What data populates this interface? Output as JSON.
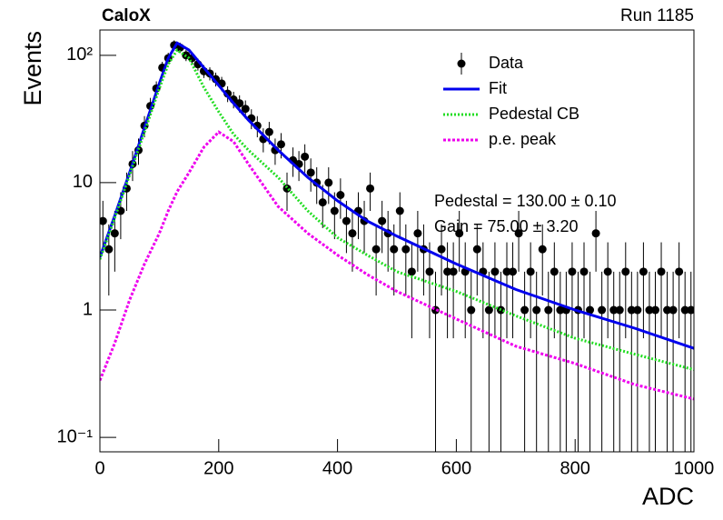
{
  "chart_data": {
    "type": "scatter",
    "title": "CaloX",
    "subtitle": "Run 1185",
    "x_label": "ADC",
    "y_label": "Events",
    "log_y": true,
    "xlim": [
      0,
      1000
    ],
    "ylim": [
      0.077,
      158
    ],
    "xticks": [
      0,
      200,
      400,
      600,
      800,
      1000
    ],
    "yticks": [
      {
        "value": 0.1,
        "label": "10⁻¹"
      },
      1,
      10,
      {
        "value": 100,
        "label": "10²"
      }
    ],
    "legend": "top-right",
    "data_series": {
      "name": "Data",
      "color": "#000000",
      "x": [
        5,
        15,
        25,
        35,
        45,
        55,
        65,
        75,
        85,
        95,
        105,
        115,
        125,
        135,
        145,
        155,
        165,
        175,
        185,
        195,
        205,
        215,
        225,
        235,
        245,
        255,
        265,
        275,
        285,
        295,
        305,
        315,
        325,
        335,
        345,
        355,
        365,
        375,
        385,
        395,
        405,
        415,
        425,
        435,
        445,
        455,
        465,
        475,
        485,
        495,
        505,
        515,
        525,
        535,
        545,
        555,
        565,
        575,
        585,
        595,
        605,
        615,
        625,
        635,
        645,
        655,
        665,
        675,
        685,
        695,
        705,
        715,
        725,
        735,
        745,
        755,
        765,
        775,
        785,
        795,
        805,
        815,
        825,
        835,
        845,
        855,
        865,
        875,
        885,
        895,
        905,
        915,
        925,
        935,
        945,
        955,
        965,
        975,
        985,
        995
      ],
      "values": [
        5,
        3,
        4,
        6,
        9,
        14,
        18,
        28,
        40,
        55,
        80,
        95,
        120,
        115,
        100,
        95,
        85,
        75,
        72,
        65,
        60,
        50,
        45,
        42,
        38,
        32,
        28,
        22,
        25,
        18,
        20,
        9,
        15,
        14,
        16,
        12,
        10,
        7,
        10,
        6,
        8,
        5,
        4,
        6,
        5,
        9,
        3,
        5,
        4,
        3,
        6,
        3,
        2,
        4,
        3,
        2,
        1,
        3,
        2,
        2,
        4,
        2,
        1,
        3,
        2,
        1,
        2,
        1,
        2,
        2,
        4,
        1,
        2,
        1,
        3,
        1,
        2,
        1,
        1,
        2,
        1,
        2,
        1,
        4,
        1,
        2,
        1,
        1,
        2,
        1,
        1,
        2,
        1,
        1,
        2,
        1,
        1,
        2,
        1,
        1
      ],
      "errors": [
        2.2,
        1.7,
        2,
        2.4,
        3,
        3.7,
        4.2,
        5.3,
        6.3,
        7.4,
        8.9,
        9.7,
        11,
        10.7,
        10,
        9.7,
        9.2,
        8.7,
        8.5,
        8.1,
        7.7,
        7.1,
        6.7,
        6.5,
        6.2,
        5.7,
        5.3,
        4.7,
        5,
        4.2,
        4.5,
        3,
        3.9,
        3.7,
        4,
        3.5,
        3.2,
        2.6,
        3.2,
        2.4,
        2.8,
        2.2,
        2,
        2.4,
        2.2,
        3,
        1.7,
        2.2,
        2,
        1.7,
        2.4,
        1.7,
        1.4,
        2,
        1.7,
        1.4,
        1,
        1.7,
        1.4,
        1.4,
        2,
        1.4,
        1,
        1.7,
        1.4,
        1,
        1.4,
        1,
        1.4,
        1.4,
        2,
        1,
        1.4,
        1,
        1.7,
        1,
        1.4,
        1,
        1,
        1.4,
        1,
        1.4,
        1,
        2,
        1,
        1.4,
        1,
        1,
        1.4,
        1,
        1,
        1.4,
        1,
        1,
        1.4,
        1,
        1,
        1.4,
        1,
        1
      ]
    },
    "curve_x": [
      0,
      25,
      50,
      75,
      100,
      115,
      130,
      150,
      175,
      200,
      225,
      250,
      300,
      350,
      400,
      450,
      500,
      600,
      700,
      800,
      900,
      1000
    ],
    "series": [
      {
        "name": "Fit",
        "color": "#0000ee",
        "style": "solid",
        "values": [
          2.6,
          5.5,
          12,
          27,
          60,
          95,
          125,
          110,
          80,
          58,
          42,
          31,
          18,
          11,
          7.2,
          5,
          3.8,
          2.3,
          1.45,
          1.0,
          0.72,
          0.5
        ]
      },
      {
        "name": "Pedestal CB",
        "color": "#22dd22",
        "style": "dotted",
        "values": [
          2.5,
          5.3,
          11.5,
          25,
          55,
          85,
          110,
          95,
          56,
          36,
          24,
          18,
          11,
          6,
          3.7,
          2.7,
          2.0,
          1.4,
          0.9,
          0.6,
          0.45,
          0.34
        ]
      },
      {
        "name": "p.e. peak",
        "color": "#ee00ee",
        "style": "dashed",
        "values": [
          0.28,
          0.55,
          1.2,
          2.3,
          4,
          6,
          8.5,
          12,
          19,
          25,
          21,
          14,
          6.5,
          4,
          2.7,
          1.9,
          1.4,
          0.85,
          0.52,
          0.38,
          0.26,
          0.2
        ]
      }
    ],
    "annotations": [
      "Pedestal = 130.00 ± 0.10",
      "Gain = 75.00 ± 3.20"
    ]
  }
}
